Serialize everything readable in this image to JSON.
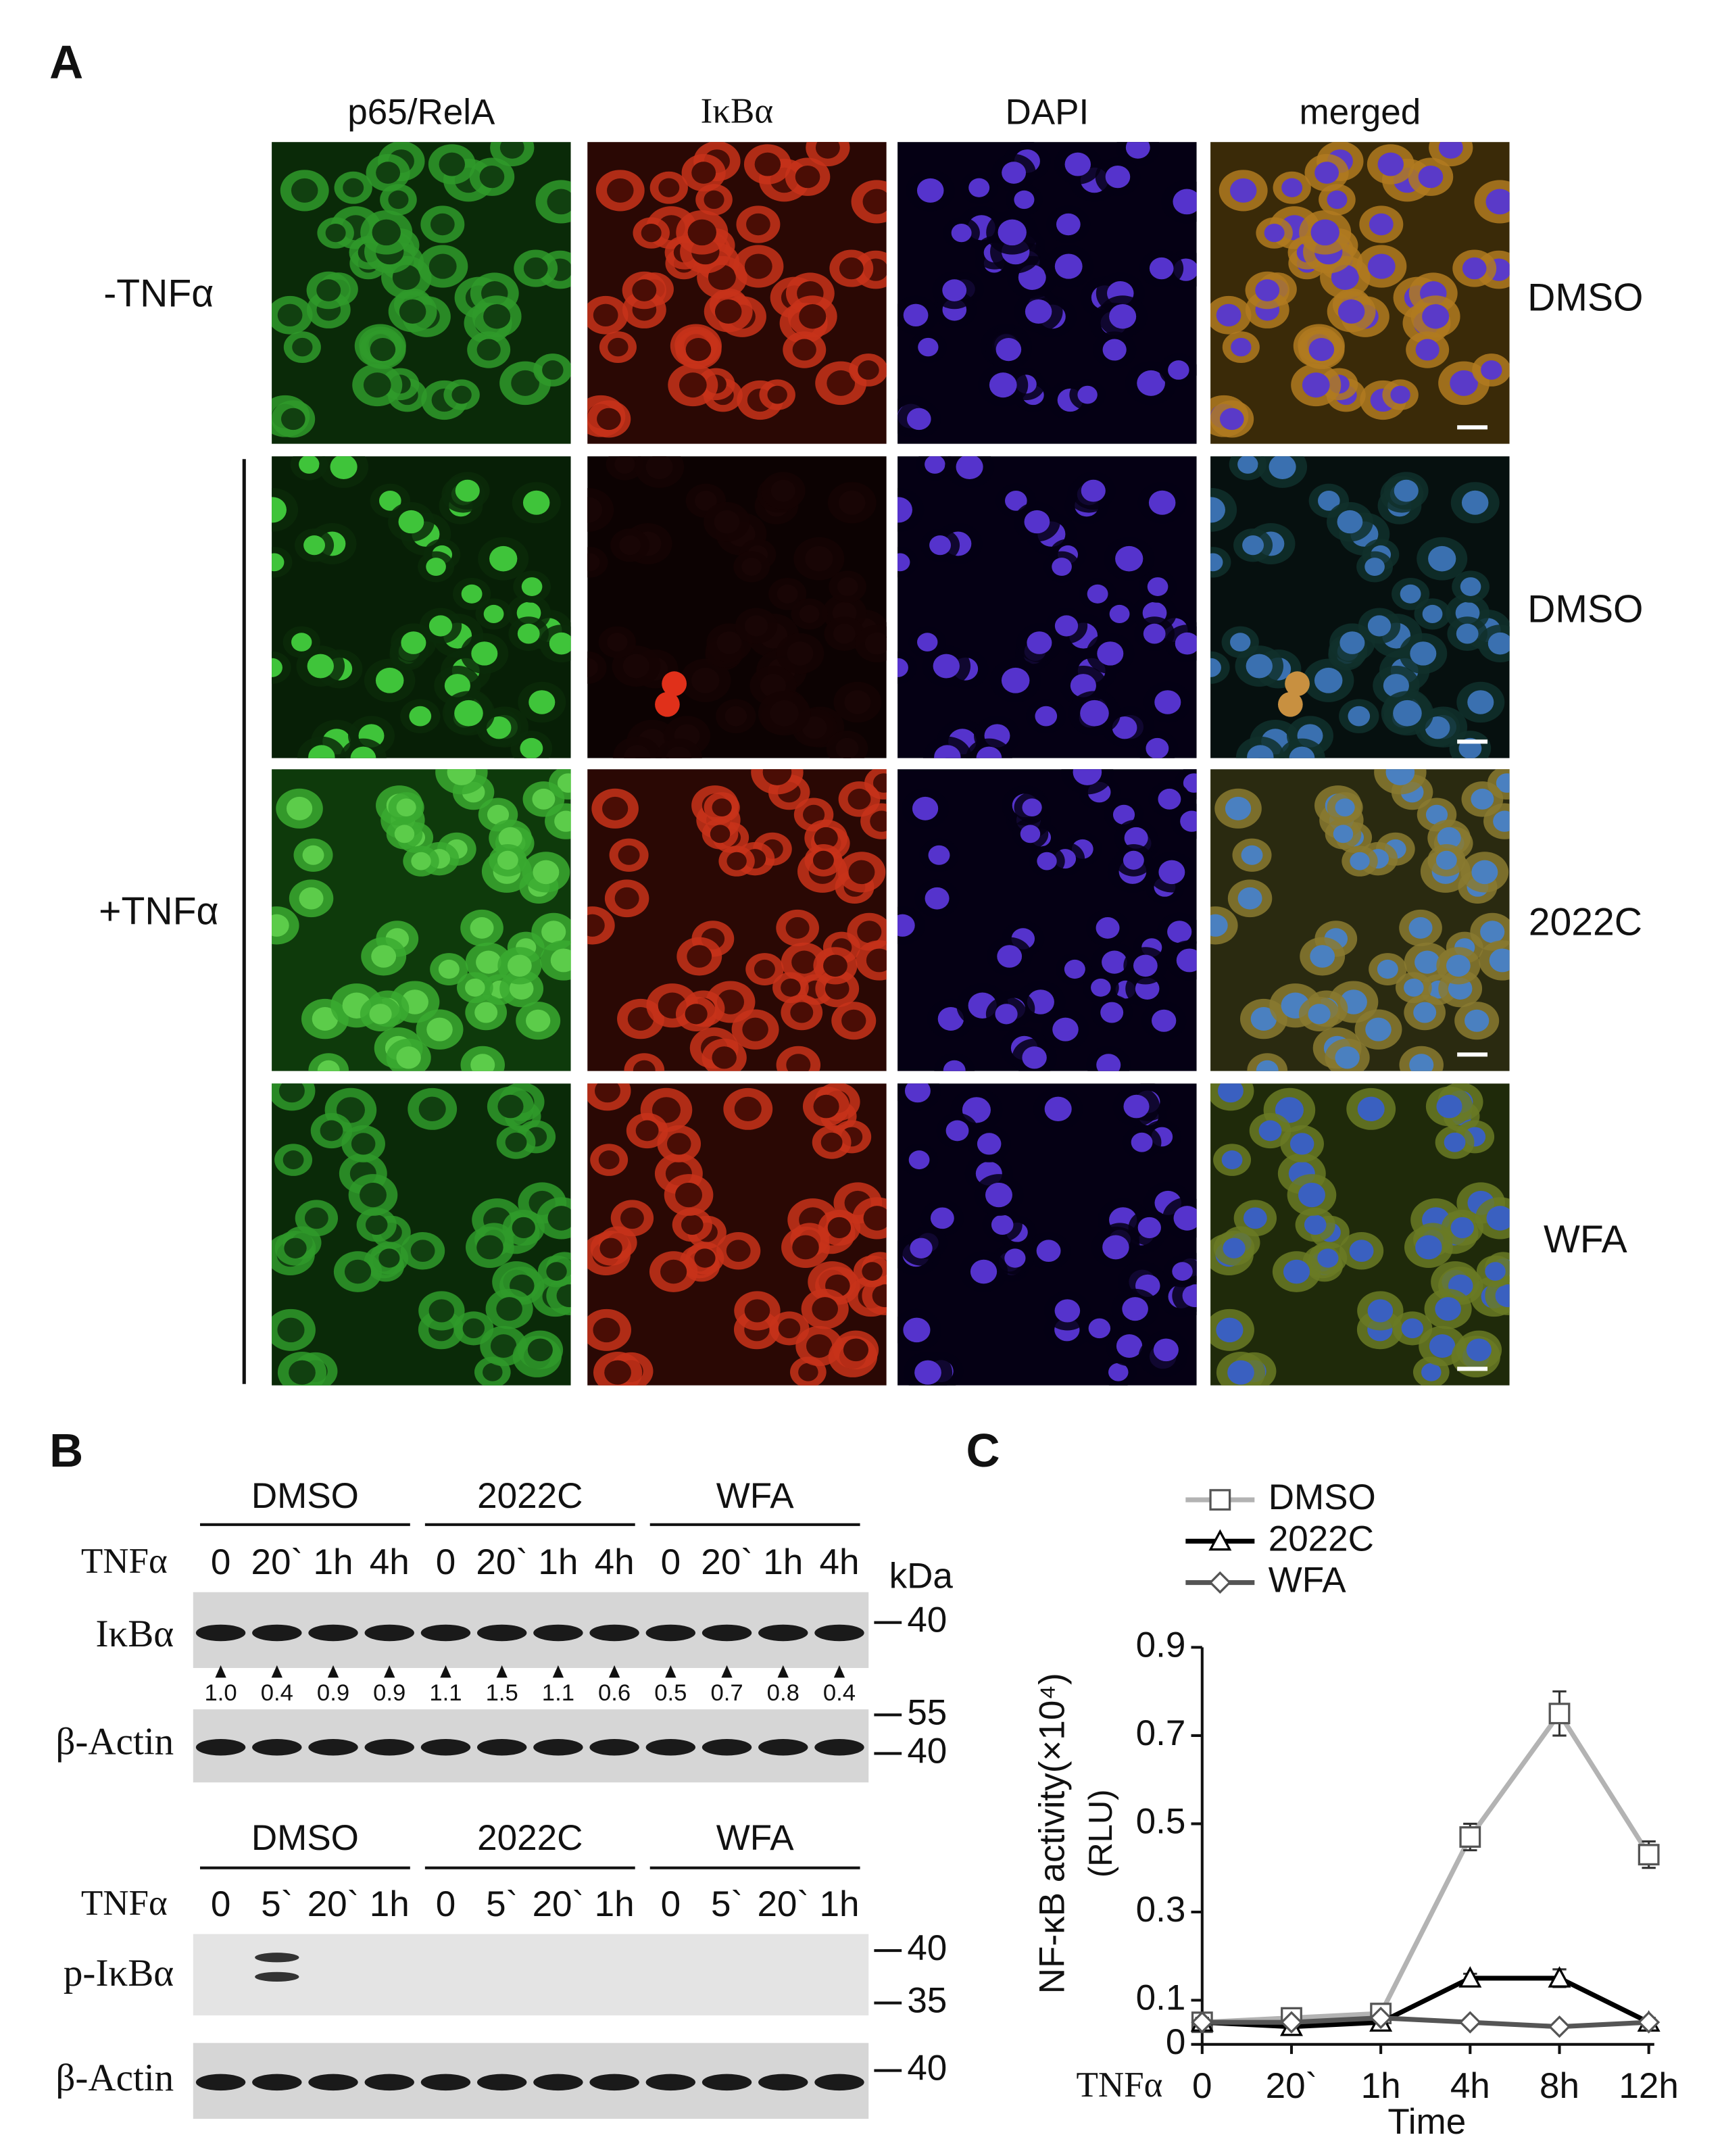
{
  "panel_a": {
    "label": "A",
    "columns": [
      "p65/RelA",
      "IκBα",
      "DAPI",
      "merged"
    ],
    "row_groups": [
      "-TNFα",
      "+TNFα"
    ],
    "rows": [
      "DMSO",
      "DMSO",
      "2022C",
      "WFA"
    ]
  },
  "panel_b": {
    "label": "B",
    "kda": "kDa",
    "blots": [
      {
        "groups": [
          "DMSO",
          "2022C",
          "WFA"
        ],
        "treatment": "TNFα",
        "lanes": [
          "0",
          "20`",
          "1h",
          "4h",
          "0",
          "20`",
          "1h",
          "4h",
          "0",
          "20`",
          "1h",
          "4h"
        ],
        "rows": [
          {
            "label": "IκBα",
            "markers": [
              40
            ]
          },
          {
            "label": "β-Actin",
            "markers": [
              55,
              40
            ]
          }
        ],
        "quantification": [
          "1.0",
          "0.4",
          "0.9",
          "0.9",
          "1.1",
          "1.5",
          "1.1",
          "0.6",
          "0.5",
          "0.7",
          "0.8",
          "0.4"
        ]
      },
      {
        "groups": [
          "DMSO",
          "2022C",
          "WFA"
        ],
        "treatment": "TNFα",
        "lanes": [
          "0",
          "5`",
          "20`",
          "1h",
          "0",
          "5`",
          "20`",
          "1h",
          "0",
          "5`",
          "20`",
          "1h"
        ],
        "rows": [
          {
            "label": "p-IκBα",
            "markers": [
              40,
              35
            ]
          },
          {
            "label": "β-Actin",
            "markers": [
              40
            ]
          }
        ]
      }
    ]
  },
  "chart_data": {
    "type": "line",
    "panel_label": "C",
    "y_label": "NF-κB activity(×10⁴)",
    "y_unit": "(RLU)",
    "x_label": "Time",
    "x_prefix": "TNFα",
    "categories": [
      "0",
      "20`",
      "1h",
      "4h",
      "8h",
      "12h"
    ],
    "ylim": [
      0,
      0.9
    ],
    "yticks": [
      0,
      0.1,
      0.3,
      0.5,
      0.7,
      0.9
    ],
    "series": [
      {
        "name": "DMSO",
        "color": "#b3b3b3",
        "marker": "square",
        "values": [
          0.05,
          0.06,
          0.07,
          0.47,
          0.75,
          0.43
        ],
        "errors": [
          0.01,
          0.01,
          0.01,
          0.03,
          0.05,
          0.03
        ]
      },
      {
        "name": "2022C",
        "color": "#000000",
        "marker": "triangle",
        "values": [
          0.05,
          0.04,
          0.05,
          0.15,
          0.15,
          0.05
        ],
        "errors": [
          0.01,
          0.01,
          0.01,
          0.01,
          0.02,
          0.01
        ]
      },
      {
        "name": "WFA",
        "color": "#555555",
        "marker": "diamond",
        "values": [
          0.05,
          0.05,
          0.06,
          0.05,
          0.04,
          0.05
        ]
      }
    ]
  }
}
